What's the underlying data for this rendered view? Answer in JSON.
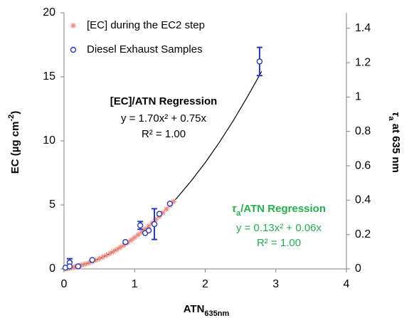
{
  "chart_data": {
    "type": "scatter",
    "xlabel": [
      "ATN",
      "635nm"
    ],
    "ylabel": [
      "EC (µg cm",
      "-2",
      ")"
    ],
    "y2label": [
      "τ",
      "a",
      " at 635 nm"
    ],
    "xlim": [
      0,
      4
    ],
    "xticks": [
      0,
      1,
      2,
      3,
      4
    ],
    "ylim": [
      0,
      20
    ],
    "yticks": [
      0,
      5,
      10,
      15,
      20
    ],
    "y2lim": [
      0,
      1.49
    ],
    "y2ticks": [
      0,
      0.2,
      0.4,
      0.6,
      0.8,
      1,
      1.2,
      1.4
    ],
    "legend": "upper left",
    "series": [
      {
        "name": "[EC] during the EC2 step",
        "color": "#f08a80",
        "marker": "asterisk",
        "x": [
          0.02,
          0.05,
          0.08,
          0.11,
          0.14,
          0.17,
          0.2,
          0.25,
          0.3,
          0.35,
          0.4,
          0.45,
          0.5,
          0.55,
          0.6,
          0.65,
          0.7,
          0.75,
          0.8,
          0.85,
          0.9,
          0.95,
          1.0,
          1.05,
          1.1,
          1.15,
          1.2,
          1.25,
          1.3,
          1.35,
          1.4,
          1.45,
          1.5,
          1.55
        ],
        "values": [
          0.02,
          0.04,
          0.07,
          0.1,
          0.14,
          0.18,
          0.22,
          0.3,
          0.38,
          0.47,
          0.57,
          0.68,
          0.8,
          0.93,
          1.06,
          1.2,
          1.36,
          1.52,
          1.69,
          1.87,
          2.05,
          2.25,
          2.45,
          2.66,
          2.88,
          3.11,
          3.35,
          3.59,
          3.85,
          4.11,
          4.38,
          4.66,
          4.95,
          5.25
        ]
      },
      {
        "name": "Diesel Exhaust Samples",
        "color": "#2438c0",
        "marker": "circle",
        "x": [
          0.02,
          0.08,
          0.08,
          0.2,
          0.4,
          0.87,
          1.08,
          1.15,
          1.2,
          1.28,
          1.35,
          1.5,
          2.77
        ],
        "values": [
          0.1,
          0.5,
          0.2,
          0.2,
          0.7,
          2.1,
          3.4,
          2.8,
          3.0,
          3.5,
          4.3,
          5.1,
          16.2
        ],
        "errors": [
          null,
          0.3,
          null,
          null,
          null,
          null,
          0.3,
          null,
          null,
          1.2,
          null,
          null,
          1.1
        ]
      }
    ],
    "curve": {
      "color": "#000000",
      "x": [
        0,
        0.2,
        0.4,
        0.6,
        0.8,
        1.0,
        1.2,
        1.4,
        1.6,
        1.8,
        2.0,
        2.2,
        2.4,
        2.6,
        2.8
      ],
      "values": [
        0,
        0.22,
        0.57,
        1.06,
        1.69,
        2.45,
        3.35,
        4.38,
        5.55,
        6.86,
        8.3,
        9.88,
        11.6,
        13.46,
        15.43
      ]
    },
    "annotations": {
      "ec_title": "[EC]/ATN Regression",
      "ec_equation": "y = 1.70x² + 0.75x",
      "ec_r2": "R² = 1.00",
      "tau_title": [
        "τ",
        "a",
        "/ATN Regression"
      ],
      "tau_equation": "y = 0.13x² + 0.06x",
      "tau_r2": "R² = 1.00"
    }
  }
}
